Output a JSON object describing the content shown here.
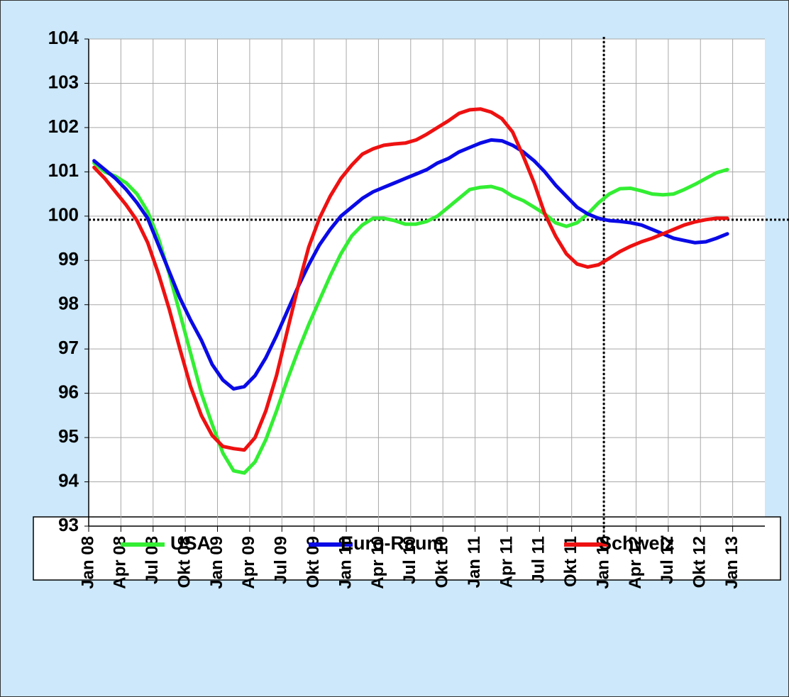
{
  "chart_data": {
    "type": "line",
    "x": [
      "2008-01",
      "2008-02",
      "2008-03",
      "2008-04",
      "2008-05",
      "2008-06",
      "2008-07",
      "2008-08",
      "2008-09",
      "2008-10",
      "2008-11",
      "2008-12",
      "2009-01",
      "2009-02",
      "2009-03",
      "2009-04",
      "2009-05",
      "2009-06",
      "2009-07",
      "2009-08",
      "2009-09",
      "2009-10",
      "2009-11",
      "2009-12",
      "2010-01",
      "2010-02",
      "2010-03",
      "2010-04",
      "2010-05",
      "2010-06",
      "2010-07",
      "2010-08",
      "2010-09",
      "2010-10",
      "2010-11",
      "2010-12",
      "2011-01",
      "2011-02",
      "2011-03",
      "2011-04",
      "2011-05",
      "2011-06",
      "2011-07",
      "2011-08",
      "2011-09",
      "2011-10",
      "2011-11",
      "2011-12",
      "2012-01",
      "2012-02",
      "2012-03",
      "2012-04",
      "2012-05",
      "2012-06",
      "2012-07",
      "2012-08",
      "2012-09",
      "2012-10",
      "2012-11",
      "2012-12"
    ],
    "series": [
      {
        "name": "USA",
        "color": "#33ee33",
        "values": [
          101.2,
          101.0,
          100.9,
          100.75,
          100.5,
          100.1,
          99.5,
          98.7,
          97.8,
          96.9,
          96.0,
          95.3,
          94.65,
          94.25,
          94.2,
          94.45,
          94.95,
          95.6,
          96.3,
          96.95,
          97.55,
          98.1,
          98.65,
          99.15,
          99.55,
          99.8,
          99.95,
          99.95,
          99.9,
          99.82,
          99.82,
          99.88,
          100.0,
          100.2,
          100.4,
          100.6,
          100.65,
          100.67,
          100.6,
          100.45,
          100.35,
          100.2,
          100.05,
          99.85,
          99.77,
          99.85,
          100.05,
          100.3,
          100.5,
          100.62,
          100.63,
          100.57,
          100.5,
          100.48,
          100.5,
          100.6,
          100.72,
          100.85,
          100.98,
          101.05
        ]
      },
      {
        "name": "Euro-Raum",
        "color": "#0a0ae6",
        "values": [
          101.25,
          101.05,
          100.85,
          100.6,
          100.3,
          99.95,
          99.35,
          98.75,
          98.15,
          97.65,
          97.2,
          96.65,
          96.3,
          96.1,
          96.15,
          96.4,
          96.8,
          97.3,
          97.85,
          98.4,
          98.9,
          99.35,
          99.7,
          100.0,
          100.2,
          100.4,
          100.55,
          100.65,
          100.75,
          100.85,
          100.95,
          101.05,
          101.2,
          101.3,
          101.45,
          101.55,
          101.65,
          101.72,
          101.7,
          101.6,
          101.45,
          101.25,
          101.0,
          100.7,
          100.45,
          100.2,
          100.05,
          99.95,
          99.9,
          99.88,
          99.85,
          99.8,
          99.7,
          99.6,
          99.5,
          99.45,
          99.4,
          99.42,
          99.5,
          99.6
        ]
      },
      {
        "name": "Schweiz",
        "color": "#ee1111",
        "values": [
          101.1,
          100.85,
          100.55,
          100.25,
          99.9,
          99.4,
          98.7,
          97.9,
          97.0,
          96.15,
          95.5,
          95.05,
          94.8,
          94.75,
          94.72,
          95.0,
          95.6,
          96.4,
          97.4,
          98.4,
          99.3,
          99.95,
          100.45,
          100.85,
          101.15,
          101.4,
          101.52,
          101.6,
          101.63,
          101.65,
          101.72,
          101.85,
          102.0,
          102.15,
          102.32,
          102.4,
          102.42,
          102.35,
          102.2,
          101.9,
          101.35,
          100.75,
          100.05,
          99.55,
          99.15,
          98.92,
          98.85,
          98.9,
          99.05,
          99.2,
          99.32,
          99.42,
          99.5,
          99.6,
          99.7,
          99.8,
          99.87,
          99.92,
          99.95,
          99.95
        ]
      }
    ],
    "xlim": [
      "2008-01",
      "2013-04"
    ],
    "xticks": [
      {
        "value": "2008-01",
        "label": "Jan 08"
      },
      {
        "value": "2008-04",
        "label": "Apr 08"
      },
      {
        "value": "2008-07",
        "label": "Jul 08"
      },
      {
        "value": "2008-10",
        "label": "Okt 08"
      },
      {
        "value": "2009-01",
        "label": "Jan 09"
      },
      {
        "value": "2009-04",
        "label": "Apr 09"
      },
      {
        "value": "2009-07",
        "label": "Jul 09"
      },
      {
        "value": "2009-10",
        "label": "Okt 09"
      },
      {
        "value": "2010-01",
        "label": "Jan 10"
      },
      {
        "value": "2010-04",
        "label": "Apr 10"
      },
      {
        "value": "2010-07",
        "label": "Jul 10"
      },
      {
        "value": "2010-10",
        "label": "Okt 10"
      },
      {
        "value": "2011-01",
        "label": "Jan 11"
      },
      {
        "value": "2011-04",
        "label": "Apr 11"
      },
      {
        "value": "2011-07",
        "label": "Jul 11"
      },
      {
        "value": "2011-10",
        "label": "Okt 11"
      },
      {
        "value": "2012-01",
        "label": "Jan 12"
      },
      {
        "value": "2012-04",
        "label": "Apr 12"
      },
      {
        "value": "2012-07",
        "label": "Jul 12"
      },
      {
        "value": "2012-10",
        "label": "Okt 12"
      },
      {
        "value": "2013-01",
        "label": "Jan 13"
      }
    ],
    "ylim": [
      93,
      104
    ],
    "yticks": [
      93,
      94,
      95,
      96,
      97,
      98,
      99,
      100,
      101,
      102,
      103,
      104
    ],
    "grid": true,
    "reference_lines": {
      "y": 99.92,
      "x": "2012-01"
    },
    "legend": "bottom"
  }
}
